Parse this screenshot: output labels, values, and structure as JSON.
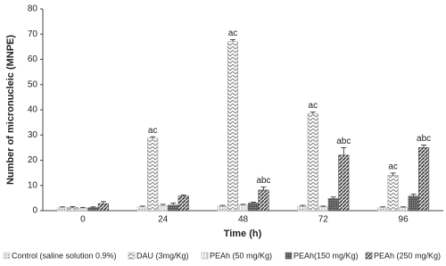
{
  "chart_data": {
    "type": "bar",
    "x_label": "Time (h)",
    "y_label": "Number of micronucleic (MNPE)",
    "categories": [
      "0",
      "24",
      "48",
      "72",
      "96"
    ],
    "ylim": [
      0,
      80
    ],
    "yticks": [
      0,
      10,
      20,
      30,
      40,
      50,
      60,
      70,
      80
    ],
    "series": [
      {
        "name": "Control (saline solution 0.9%)",
        "color": "#c8c8c8",
        "pattern": "dots",
        "values": [
          1.2,
          1.5,
          1.8,
          1.8,
          1.2
        ],
        "errors": [
          0.3,
          0.3,
          0.3,
          0.3,
          0.3
        ],
        "labels": [
          null,
          null,
          null,
          null,
          null
        ]
      },
      {
        "name": "DAU (3mg/Kg)",
        "color": "#9a9a9a",
        "pattern": "zigzag",
        "values": [
          1.3,
          28.7,
          67,
          38.5,
          14
        ],
        "errors": [
          0.3,
          0.6,
          0.8,
          0.6,
          0.9
        ],
        "labels": [
          null,
          "ac",
          "ac",
          "ac",
          "ac"
        ]
      },
      {
        "name": "PEAh (50 mg/Kg)",
        "color": "#b0b0b0",
        "pattern": "vertical",
        "values": [
          1.0,
          2.0,
          2.2,
          1.5,
          1.2
        ],
        "errors": [
          0.3,
          0.5,
          0.3,
          0.3,
          0.3
        ],
        "labels": [
          null,
          null,
          null,
          null,
          null
        ]
      },
      {
        "name": "PEAh(150 mg/Kg)",
        "color": "#666666",
        "pattern": "dense",
        "values": [
          1.2,
          2.2,
          3.0,
          4.8,
          5.8
        ],
        "errors": [
          0.3,
          0.8,
          0.4,
          0.6,
          0.7
        ],
        "labels": [
          null,
          null,
          null,
          null,
          null
        ]
      },
      {
        "name": "PEAh (250 mg/Kg)",
        "color": "#4a4a4a",
        "pattern": "diagonal",
        "values": [
          2.8,
          5.8,
          8.2,
          22,
          25
        ],
        "errors": [
          0.8,
          0.4,
          1.2,
          3.0,
          1.0
        ],
        "labels": [
          null,
          null,
          "abc",
          "abc",
          "abc"
        ]
      }
    ]
  }
}
